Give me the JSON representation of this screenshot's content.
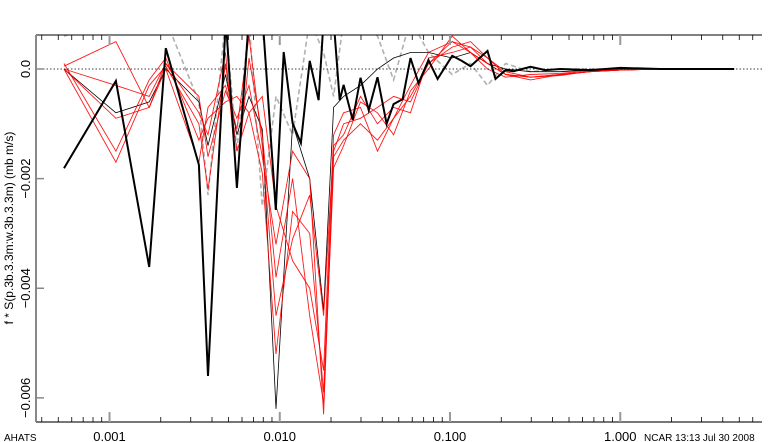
{
  "chart_data": {
    "type": "line",
    "title": "",
    "xlabel": "",
    "ylabel": "f * S(p.3b.3.3m:w.3b.3.3m) (mb m/s)",
    "xscale": "log",
    "xlim": [
      0.00037,
      6.8
    ],
    "ylim": [
      -0.00644,
      0.00062
    ],
    "grid": false,
    "zero_line": true,
    "x_ticks": [
      {
        "value": 0.001,
        "label": "0.001"
      },
      {
        "value": 0.01,
        "label": "0.010"
      },
      {
        "value": 0.1,
        "label": "0.100"
      },
      {
        "value": 1,
        "label": "1.000"
      }
    ],
    "y_ticks": [
      {
        "value": 0,
        "label": "0.0"
      },
      {
        "value": -0.002,
        "label": "−0.002"
      },
      {
        "value": -0.004,
        "label": "−0.004"
      },
      {
        "value": -0.006,
        "label": "−0.006"
      }
    ],
    "corner_left": "AHATS",
    "corner_right": "NCAR 13:13 Jul 30 2008",
    "colors": {
      "red": "#ff0000",
      "black": "#000000",
      "gray": "#b0b0b0"
    },
    "main_series": {
      "name": "heavy black",
      "x": [
        0.00054,
        0.00109,
        0.00171,
        0.00214,
        0.00335,
        0.00379,
        0.00482,
        0.0056,
        0.00658,
        0.00794,
        0.00948,
        0.01055,
        0.0119,
        0.0133,
        0.015,
        0.0169,
        0.0181,
        0.0207,
        0.0225,
        0.0237,
        0.0268,
        0.0298,
        0.0333,
        0.0375,
        0.0424,
        0.0466,
        0.0527,
        0.0586,
        0.0653,
        0.0748,
        0.0845,
        0.103,
        0.117,
        0.132,
        0.166,
        0.185,
        0.212,
        0.236,
        0.297,
        0.363,
        0.445,
        0.667,
        1.0,
        1.72,
        2.94,
        4.66
      ],
      "y": [
        -0.00181,
        -0.00022,
        -0.00361,
        0.00038,
        -0.00175,
        -0.0056,
        0.0009,
        -0.00217,
        0.0009,
        0.0009,
        -0.00257,
        0.00031,
        -0.00099,
        -0.00135,
        0.00015,
        -0.00057,
        0.0009,
        0.0009,
        -0.00057,
        -0.00029,
        -0.00093,
        -0.00016,
        -0.00075,
        -0.00015,
        -0.001,
        -0.00064,
        -0.00055,
        0.0002,
        -0.00026,
        0.00016,
        -0.00018,
        0.00024,
        0.00015,
        5e-05,
        0.00033,
        -0.00018,
        -2e-05,
        -4e-05,
        4e-05,
        -2e-05,
        0,
        -2e-05,
        2e-05,
        0,
        0,
        0
      ]
    },
    "x_common": [
      0.00054,
      0.00109,
      0.00171,
      0.00214,
      0.00335,
      0.00379,
      0.0048,
      0.0056,
      0.0066,
      0.0079,
      0.0095,
      0.0119,
      0.015,
      0.0181,
      0.0207,
      0.0237,
      0.0298,
      0.0375,
      0.0466,
      0.0586,
      0.0748,
      0.103,
      0.132,
      0.166,
      0.212,
      0.297,
      0.445,
      0.667,
      1.0,
      1.72,
      2.94,
      4.66
    ],
    "series": [
      {
        "name": "red-1",
        "style": "red",
        "y": [
          0,
          -0.0009,
          -0.0007,
          0.0001,
          -0.0005,
          -0.0016,
          -0.0004,
          -0.0009,
          -0.0003,
          -0.0016,
          -0.0032,
          -0.0015,
          -0.002,
          -0.0063,
          -0.0016,
          -0.0013,
          -0.001,
          -0.0013,
          -0.0009,
          -0.0005,
          0.0001,
          0.0004,
          0.0005,
          0.0002,
          -0.0001,
          -0.00015,
          -0.0001,
          -5e-05,
          -2e-05,
          0,
          0,
          0
        ]
      },
      {
        "name": "red-2",
        "style": "red",
        "y": [
          5e-05,
          0.0005,
          -0.0007,
          0,
          -0.0017,
          -0.0007,
          -0.0003,
          -0.0011,
          0.0006,
          -0.0014,
          -0.0045,
          -0.0031,
          -0.0023,
          -0.0045,
          -0.0014,
          -0.0012,
          -0.0005,
          -0.001,
          -0.0007,
          -0.0008,
          0.0002,
          0.0003,
          0.0004,
          0.0001,
          -0.0001,
          -0.0002,
          -0.0001,
          -5e-05,
          -2e-05,
          0,
          0,
          0
        ]
      },
      {
        "name": "red-3",
        "style": "red",
        "y": [
          0,
          -0.0017,
          -0.0003,
          5e-05,
          -0.001,
          -0.0022,
          0.0001,
          -0.0015,
          -0.0008,
          -0.0005,
          -0.0025,
          -0.0035,
          -0.004,
          -0.0055,
          -0.0012,
          -0.0008,
          -0.0007,
          -0.0015,
          -0.0009,
          -0.0003,
          0.0003,
          0.0005,
          0.0003,
          0,
          -0.00015,
          -0.0001,
          -8e-05,
          -3e-05,
          -1e-05,
          0,
          0,
          0
        ]
      },
      {
        "name": "red-4",
        "style": "red",
        "y": [
          0.0001,
          -0.0015,
          -0.0002,
          0.0002,
          -0.0013,
          -0.0009,
          -0.0006,
          -0.0005,
          -0.0008,
          -0.0019,
          -0.0052,
          -0.0026,
          -0.003,
          -0.0059,
          -0.0015,
          -0.001,
          -0.0009,
          -0.0007,
          -0.0005,
          -0.0006,
          0.0001,
          0.0005,
          0.0004,
          0.0002,
          -5e-05,
          -0.00015,
          -0.00012,
          -4e-05,
          -2e-05,
          0,
          0,
          0
        ]
      },
      {
        "name": "red-5",
        "style": "red",
        "y": [
          0,
          -0.0003,
          -0.0005,
          0.0001,
          -0.0008,
          -0.0012,
          0.0003,
          -0.002,
          0.0002,
          -0.0012,
          -0.0038,
          -0.002,
          -0.0045,
          -0.0061,
          -0.0018,
          -0.0014,
          -0.0006,
          -0.0008,
          -0.0012,
          -0.0004,
          0,
          0.0006,
          0.0003,
          0.0001,
          -0.0001,
          -0.00015,
          -0.0001,
          -5e-05,
          -2e-05,
          0,
          0,
          0
        ]
      },
      {
        "name": "thin-black",
        "style": "thin",
        "y": [
          0,
          -0.0008,
          -0.0006,
          0,
          -0.0006,
          -0.0014,
          -0.0001,
          -0.0012,
          -0.0005,
          -0.0011,
          -0.0062,
          -0.001,
          -0.002,
          -0.0044,
          -0.0007,
          -0.0005,
          -0.0003,
          0,
          0.0002,
          0.0003,
          0.0003,
          0.0002,
          0.0003,
          0.0001,
          0,
          -5e-05,
          -5e-05,
          -2e-05,
          0,
          0,
          0,
          0
        ]
      },
      {
        "name": "gray-dashed",
        "style": "gray",
        "y": [
          0.0006,
          0.0009,
          0.0007,
          0.0009,
          -0.0006,
          -0.0023,
          0.0009,
          -0.0015,
          0.0009,
          -0.0025,
          -0.0005,
          -0.0012,
          0.0009,
          0.0003,
          -0.0005,
          0.0009,
          0.0009,
          0.0006,
          -0.0002,
          0.0009,
          0.0003,
          -0.0001,
          0.0001,
          -0.0003,
          0.0001,
          -5e-05,
          0,
          0,
          0,
          0,
          0,
          0
        ]
      }
    ]
  }
}
